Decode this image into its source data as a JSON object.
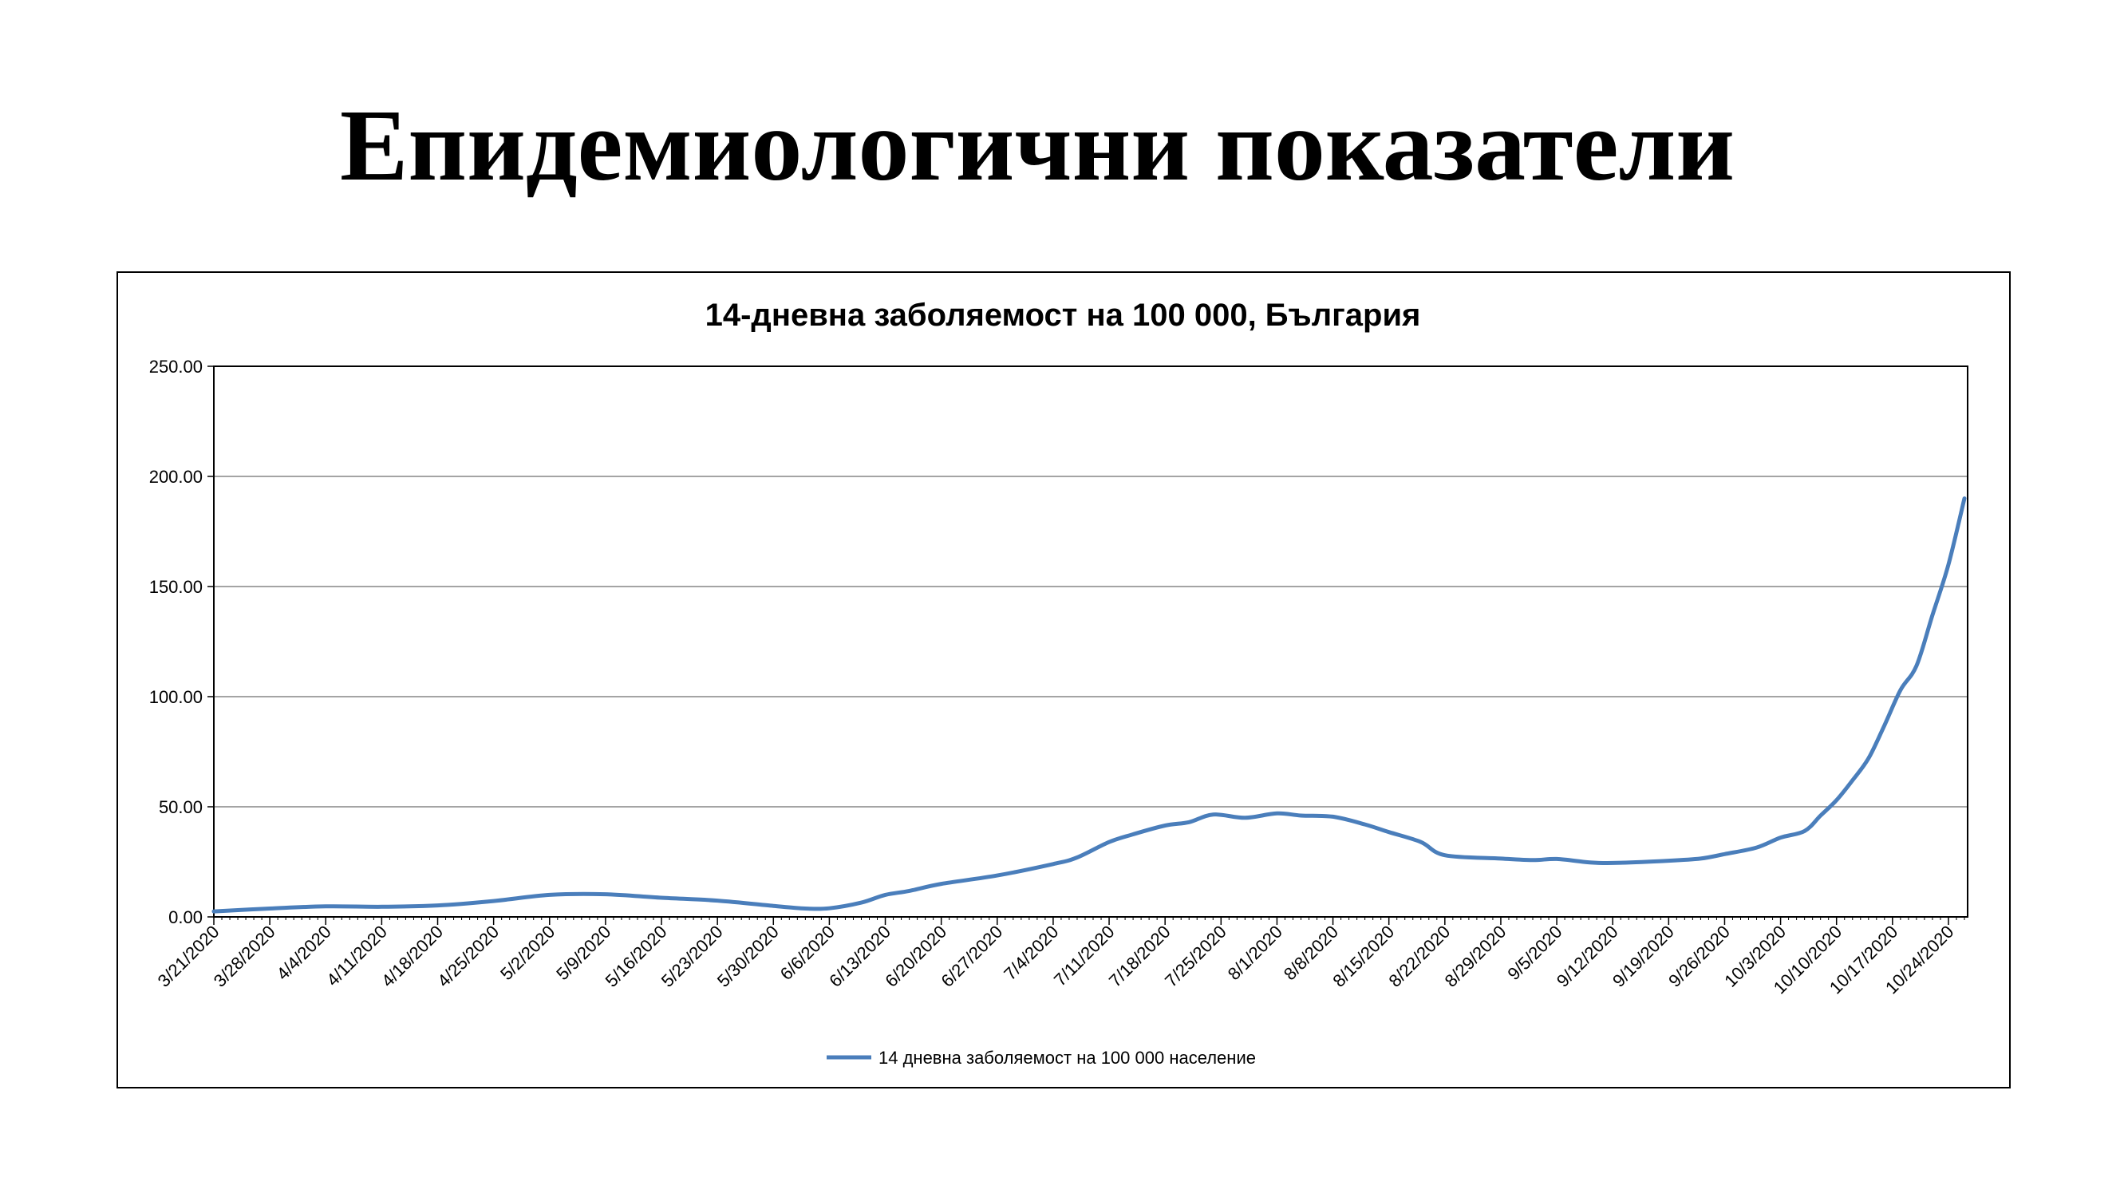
{
  "slide": {
    "title": "Епидемиологични показатели"
  },
  "colors": {
    "series": "#4A7EBB",
    "grid": "#868686",
    "axis": "#000000",
    "background": "#ffffff"
  },
  "chart_data": {
    "type": "line",
    "title": "14-дневна заболяемост на 100 000, България",
    "xlabel": "",
    "ylabel": "",
    "ylim": [
      0,
      250
    ],
    "grid": true,
    "legend_position": "bottom",
    "y_ticks": [
      "0.00",
      "50.00",
      "100.00",
      "150.00",
      "200.00",
      "250.00"
    ],
    "x_tick_labels": [
      "3/21/2020",
      "3/28/2020",
      "4/4/2020",
      "4/11/2020",
      "4/18/2020",
      "4/25/2020",
      "5/2/2020",
      "5/9/2020",
      "5/16/2020",
      "5/23/2020",
      "5/30/2020",
      "6/6/2020",
      "6/13/2020",
      "6/20/2020",
      "6/27/2020",
      "7/4/2020",
      "7/11/2020",
      "7/18/2020",
      "7/25/2020",
      "8/1/2020",
      "8/8/2020",
      "8/15/2020",
      "8/22/2020",
      "8/29/2020",
      "9/5/2020",
      "9/12/2020",
      "9/19/2020",
      "9/26/2020",
      "10/3/2020",
      "10/10/2020",
      "10/17/2020",
      "10/24/2020"
    ],
    "series": [
      {
        "name": "14 дневна заболяемост на 100 000 население",
        "points": [
          [
            "3/21/2020",
            2.5
          ],
          [
            "3/28/2020",
            3.8
          ],
          [
            "4/4/2020",
            4.8
          ],
          [
            "4/11/2020",
            4.6
          ],
          [
            "4/18/2020",
            5.2
          ],
          [
            "4/25/2020",
            7.2
          ],
          [
            "5/2/2020",
            10.0
          ],
          [
            "5/9/2020",
            10.3
          ],
          [
            "5/16/2020",
            8.7
          ],
          [
            "5/23/2020",
            7.4
          ],
          [
            "5/30/2020",
            5.0
          ],
          [
            "6/3/2020",
            3.8
          ],
          [
            "6/6/2020",
            3.9
          ],
          [
            "6/10/2020",
            6.5
          ],
          [
            "6/13/2020",
            10.0
          ],
          [
            "6/16/2020",
            11.8
          ],
          [
            "6/20/2020",
            15.0
          ],
          [
            "6/27/2020",
            18.8
          ],
          [
            "7/4/2020",
            24.0
          ],
          [
            "7/7/2020",
            27.0
          ],
          [
            "7/11/2020",
            34.0
          ],
          [
            "7/14/2020",
            37.5
          ],
          [
            "7/18/2020",
            41.5
          ],
          [
            "7/21/2020",
            43.0
          ],
          [
            "7/24/2020",
            46.5
          ],
          [
            "7/28/2020",
            45.0
          ],
          [
            "8/1/2020",
            47.0
          ],
          [
            "8/4/2020",
            46.0
          ],
          [
            "8/8/2020",
            45.5
          ],
          [
            "8/12/2020",
            42.0
          ],
          [
            "8/15/2020",
            38.5
          ],
          [
            "8/19/2020",
            34.0
          ],
          [
            "8/22/2020",
            28.0
          ],
          [
            "8/29/2020",
            26.5
          ],
          [
            "9/2/2020",
            25.8
          ],
          [
            "9/5/2020",
            26.3
          ],
          [
            "9/9/2020",
            24.8
          ],
          [
            "9/12/2020",
            24.5
          ],
          [
            "9/19/2020",
            25.5
          ],
          [
            "9/23/2020",
            26.5
          ],
          [
            "9/26/2020",
            28.5
          ],
          [
            "9/30/2020",
            31.5
          ],
          [
            "10/3/2020",
            36.0
          ],
          [
            "10/6/2020",
            39.0
          ],
          [
            "10/8/2020",
            46.0
          ],
          [
            "10/10/2020",
            53.0
          ],
          [
            "10/12/2020",
            62.0
          ],
          [
            "10/14/2020",
            72.0
          ],
          [
            "10/16/2020",
            87.0
          ],
          [
            "10/18/2020",
            103.0
          ],
          [
            "10/20/2020",
            114.0
          ],
          [
            "10/22/2020",
            137.0
          ],
          [
            "10/24/2020",
            160.0
          ],
          [
            "10/26/2020",
            190.0
          ]
        ]
      }
    ]
  }
}
